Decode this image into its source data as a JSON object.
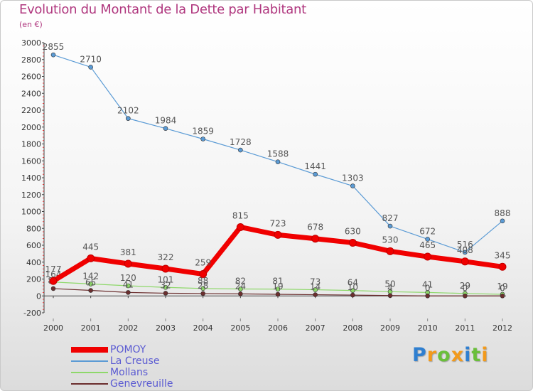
{
  "title": "Evolution du Montant de la Dette par Habitant",
  "subtitle": "(en €)",
  "logo": {
    "letters": [
      "P",
      "r",
      "o",
      "x",
      "i",
      "t",
      "i"
    ],
    "colors": [
      "#2f7fd0",
      "#f29a1c",
      "#6abf3a",
      "#f29a1c",
      "#2f7fd0",
      "#6abf3a",
      "#f29a1c"
    ]
  },
  "chart_data": {
    "type": "line",
    "x": [
      "2000",
      "2001",
      "2002",
      "2003",
      "2004",
      "2005",
      "2006",
      "2007",
      "2008",
      "2009",
      "2010",
      "2011",
      "2012"
    ],
    "ylim": [
      -200,
      3000
    ],
    "yticks": [
      "-200",
      "0",
      "200",
      "400",
      "600",
      "800",
      "1000",
      "1200",
      "1400",
      "1600",
      "1800",
      "2000",
      "2200",
      "2400",
      "2600",
      "2800",
      "3000"
    ],
    "grid": false,
    "legend_position": "bottom-left",
    "series": [
      {
        "name": "La Creuse",
        "color": "#5b9bd5",
        "values": [
          2855,
          2710,
          2102,
          1984,
          1859,
          1728,
          1588,
          1441,
          1303,
          827,
          672,
          516,
          888
        ],
        "labels": [
          "2855",
          "2710",
          "2102",
          "1984",
          "1859",
          "1728",
          "1588",
          "1441",
          "1303",
          "827",
          "672",
          "516",
          "888"
        ]
      },
      {
        "name": "Mollans",
        "color": "#8ed86a",
        "values": [
          164,
          142,
          120,
          101,
          88,
          82,
          81,
          73,
          64,
          50,
          41,
          29,
          19
        ],
        "labels": [
          "164",
          "142",
          "120",
          "101",
          "88",
          "82",
          "81",
          "73",
          "64",
          "50",
          "41",
          "29",
          "19"
        ]
      },
      {
        "name": "Genevreuille",
        "color": "#6b2e2e",
        "values": [
          87,
          65,
          41,
          32,
          28,
          24,
          19,
          14,
          10,
          4,
          0,
          0,
          0
        ],
        "labels": [
          "87",
          "65",
          "41",
          "32",
          "28",
          "24",
          "19",
          "14",
          "10",
          "4",
          "0",
          "0",
          "0"
        ]
      },
      {
        "name": "POMOY",
        "color": "#f00000",
        "values": [
          177,
          445,
          381,
          322,
          259,
          815,
          723,
          678,
          630,
          530,
          465,
          408,
          345
        ],
        "labels": [
          "177",
          "445",
          "381",
          "322",
          "259",
          "815",
          "723",
          "678",
          "630",
          "530",
          "465",
          "408",
          "345"
        ]
      }
    ],
    "legend": [
      "POMOY",
      "La Creuse",
      "Mollans",
      "Genevreuille"
    ]
  }
}
